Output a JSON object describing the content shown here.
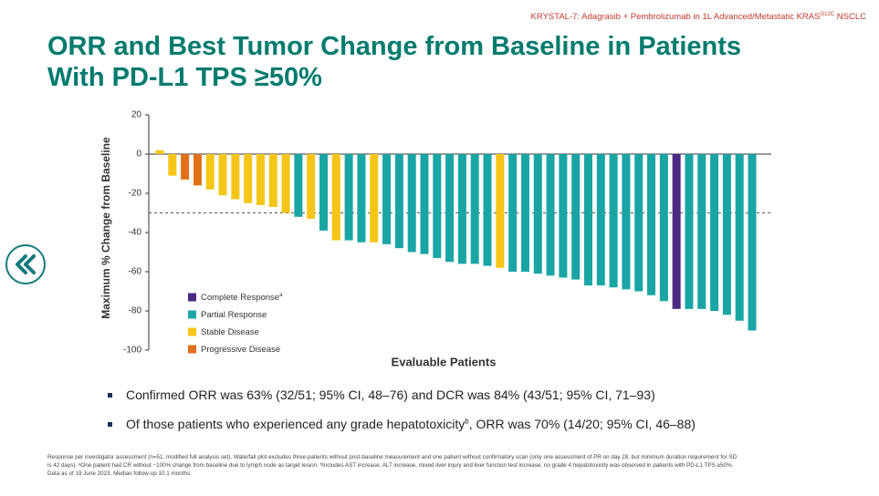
{
  "header": {
    "study": "KRYSTAL-7: Adagrasib + Pembrolizumab in 1L Advanced/Metastatic KRAS",
    "study_sup": "G12C",
    "study_end": " NSCLC",
    "title_line1": "ORR and Best Tumor Change from Baseline in Patients",
    "title_line2": "With PD-L1 TPS ≥50%"
  },
  "chart_data": {
    "type": "bar",
    "y_label": "Maximum % Change from Baseline",
    "x_label": "Evaluable Patients",
    "ylim": [
      -100,
      20
    ],
    "yticks": [
      20,
      0,
      -20,
      -40,
      -60,
      -80,
      -100
    ],
    "reference_line": -30,
    "legend_position": "lower left",
    "series": [
      {
        "name": "Complete Response",
        "name_sup": "a",
        "color": "#4a2a82",
        "values": [
          null,
          null,
          null,
          null,
          null,
          null,
          null,
          null,
          null,
          null,
          null,
          null,
          null,
          null,
          null,
          null,
          null,
          null,
          null,
          null,
          null,
          null,
          null,
          null,
          null,
          null,
          null,
          null,
          null,
          null,
          null,
          null,
          null,
          null,
          null,
          null,
          null,
          null,
          null,
          null,
          null,
          -79,
          null,
          null,
          null,
          null,
          null,
          null
        ]
      },
      {
        "name": "Partial Response",
        "color": "#1aa5a5",
        "values": [
          null,
          null,
          null,
          null,
          null,
          null,
          null,
          null,
          null,
          null,
          null,
          -32,
          null,
          -39,
          null,
          -44,
          -45,
          null,
          -46,
          -48,
          -50,
          -51,
          -53,
          -55,
          -56,
          -56,
          -57,
          null,
          -60,
          -60,
          -61,
          -62,
          -63,
          -64,
          -67,
          -67,
          -68,
          -69,
          -70,
          -72,
          -75,
          null,
          -79,
          -79,
          -80,
          -82,
          -85,
          -90
        ]
      },
      {
        "name": "Stable Disease",
        "color": "#f5c518",
        "values": [
          2,
          -11,
          null,
          null,
          -18,
          -21,
          -23,
          -25,
          -26,
          -27,
          -30,
          null,
          -33,
          null,
          -44,
          null,
          null,
          -45,
          null,
          null,
          null,
          null,
          null,
          null,
          null,
          null,
          null,
          -58,
          null,
          null,
          null,
          null,
          null,
          null,
          null,
          null,
          null,
          null,
          null,
          null,
          null,
          null,
          null,
          null,
          null,
          null,
          null,
          null
        ]
      },
      {
        "name": "Progressive Disease",
        "color": "#e0711a",
        "values": [
          null,
          null,
          -13,
          -16,
          null,
          null,
          null,
          null,
          null,
          null,
          null,
          null,
          null,
          null,
          null,
          null,
          null,
          null,
          null,
          null,
          null,
          null,
          null,
          null,
          null,
          null,
          null,
          null,
          null,
          null,
          null,
          null,
          null,
          null,
          null,
          null,
          null,
          null,
          null,
          null,
          null,
          null,
          null,
          null,
          null,
          null,
          null,
          null
        ]
      }
    ]
  },
  "bullets": [
    {
      "text": "Confirmed ORR was 63% (32/51; 95% CI, 48–76) and DCR was 84% (43/51; 95% CI, 71–93)"
    },
    {
      "text": "Of those patients who experienced any grade hepatotoxicity",
      "sup": "b",
      "text_end": ", ORR was 70% (14/20; 95% CI, 46–88)"
    }
  ],
  "footnotes": [
    "Response per investigator assessment (n=51; modified full analysis set). Waterfall plot excludes three patients without post-baseline measurement and one patient without confirmatory scan (only one assessment of PR on day 28, but minimum duration requirement for SD",
    "is 42 days). ᵃOne patient had CR without −100% change from baseline due to lymph node as target lesion. ᵇIncludes AST increase, ALT increase, mixed liver injury and liver function test increase; no grade 4 hepatotoxicity was observed in patients with PD-L1 TPS ≥50%.",
    "Data as of 19 June 2023. Median follow-up 10.1 months."
  ]
}
